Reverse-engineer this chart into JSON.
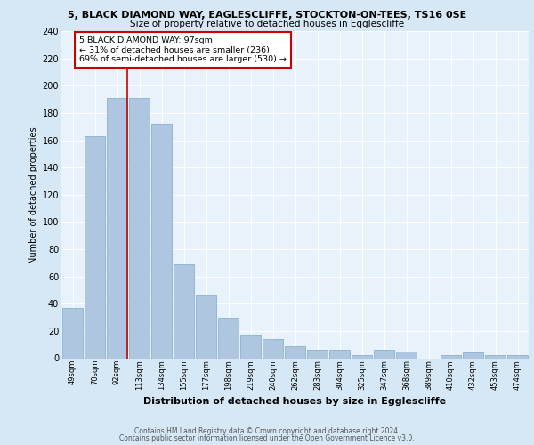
{
  "title1": "5, BLACK DIAMOND WAY, EAGLESCLIFFE, STOCKTON-ON-TEES, TS16 0SE",
  "title2": "Size of property relative to detached houses in Egglescliffe",
  "xlabel": "Distribution of detached houses by size in Egglescliffe",
  "ylabel": "Number of detached properties",
  "categories": [
    "49sqm",
    "70sqm",
    "92sqm",
    "113sqm",
    "134sqm",
    "155sqm",
    "177sqm",
    "198sqm",
    "219sqm",
    "240sqm",
    "262sqm",
    "283sqm",
    "304sqm",
    "325sqm",
    "347sqm",
    "368sqm",
    "389sqm",
    "410sqm",
    "432sqm",
    "453sqm",
    "474sqm"
  ],
  "values": [
    37,
    163,
    191,
    191,
    172,
    69,
    46,
    30,
    17,
    14,
    9,
    6,
    6,
    2,
    6,
    5,
    0,
    2,
    4,
    2,
    2
  ],
  "bar_color": "#aec6df",
  "bar_edge_color": "#7aaac8",
  "ylim": [
    0,
    240
  ],
  "yticks": [
    0,
    20,
    40,
    60,
    80,
    100,
    120,
    140,
    160,
    180,
    200,
    220,
    240
  ],
  "annotation_line1": "5 BLACK DIAMOND WAY: 97sqm",
  "annotation_line2": "← 31% of detached houses are smaller (236)",
  "annotation_line3": "69% of semi-detached houses are larger (530) →",
  "footer1": "Contains HM Land Registry data © Crown copyright and database right 2024.",
  "footer2": "Contains public sector information licensed under the Open Government Licence v3.0.",
  "bg_color": "#d6e8f5",
  "plot_bg_color": "#e8f2fa",
  "annotation_box_color": "#ffffff",
  "annotation_box_edge": "#cc0000",
  "red_line_color": "#cc0000",
  "grid_color": "#ffffff"
}
